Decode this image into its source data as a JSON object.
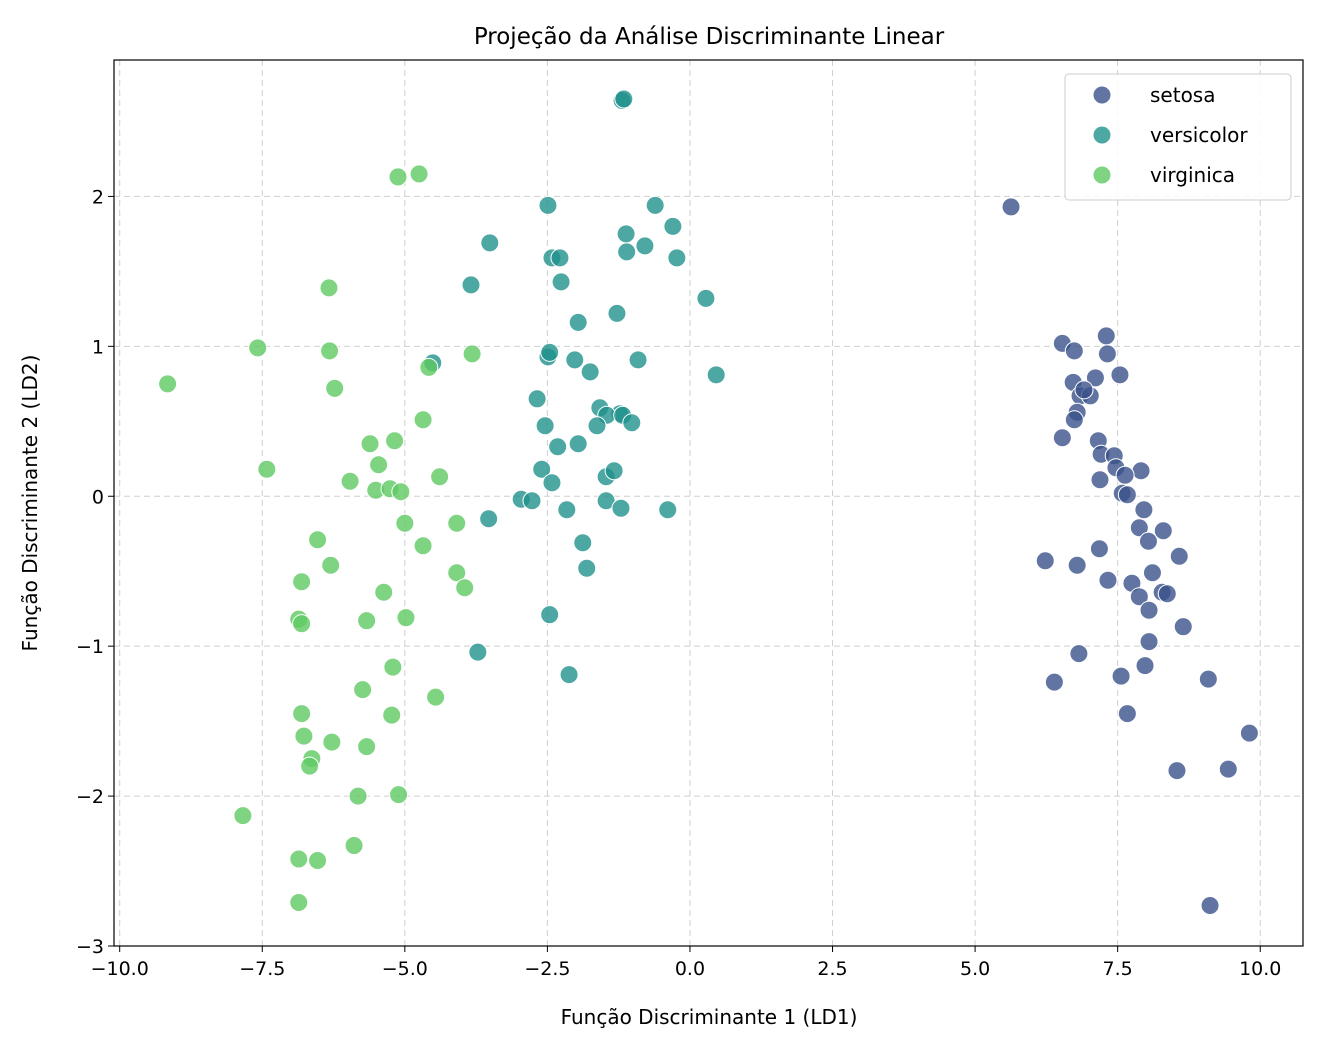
{
  "chart_data": {
    "type": "scatter",
    "title": "Projeção da Análise Discriminante Linear",
    "xlabel": "Função Discriminante 1 (LD1)",
    "ylabel": "Função Discriminante 2 (LD2)",
    "xlim": [
      -10.1,
      10.75
    ],
    "ylim": [
      -3.0,
      2.91
    ],
    "xticks": [
      -10.0,
      -7.5,
      -5.0,
      -2.5,
      0.0,
      2.5,
      5.0,
      7.5,
      10.0
    ],
    "xtick_labels": [
      "−10.0",
      "−7.5",
      "−5.0",
      "−2.5",
      "0.0",
      "2.5",
      "5.0",
      "7.5",
      "10.0"
    ],
    "yticks": [
      -3,
      -2,
      -1,
      0,
      1,
      2
    ],
    "ytick_labels": [
      "−3",
      "−2",
      "−1",
      "0",
      "1",
      "2"
    ],
    "grid": true,
    "legend_position": "top-right",
    "series": [
      {
        "name": "setosa",
        "color": "#3b528b",
        "points": [
          [
            5.63,
            1.93
          ],
          [
            6.53,
            1.02
          ],
          [
            6.74,
            0.97
          ],
          [
            7.3,
            1.07
          ],
          [
            7.32,
            0.95
          ],
          [
            7.11,
            0.79
          ],
          [
            7.54,
            0.81
          ],
          [
            6.72,
            0.76
          ],
          [
            6.84,
            0.67
          ],
          [
            7.02,
            0.67
          ],
          [
            6.91,
            0.71
          ],
          [
            6.79,
            0.56
          ],
          [
            6.74,
            0.51
          ],
          [
            6.53,
            0.39
          ],
          [
            7.16,
            0.37
          ],
          [
            7.21,
            0.28
          ],
          [
            7.44,
            0.27
          ],
          [
            7.47,
            0.19
          ],
          [
            7.91,
            0.17
          ],
          [
            7.63,
            0.14
          ],
          [
            7.58,
            0.02
          ],
          [
            7.67,
            0.01
          ],
          [
            7.19,
            0.11
          ],
          [
            7.96,
            -0.09
          ],
          [
            7.88,
            -0.21
          ],
          [
            8.04,
            -0.3
          ],
          [
            8.3,
            -0.23
          ],
          [
            7.18,
            -0.35
          ],
          [
            6.23,
            -0.43
          ],
          [
            6.79,
            -0.46
          ],
          [
            7.33,
            -0.56
          ],
          [
            7.75,
            -0.58
          ],
          [
            8.11,
            -0.51
          ],
          [
            8.58,
            -0.4
          ],
          [
            7.88,
            -0.67
          ],
          [
            8.28,
            -0.64
          ],
          [
            8.37,
            -0.65
          ],
          [
            8.05,
            -0.76
          ],
          [
            8.65,
            -0.87
          ],
          [
            8.05,
            -0.97
          ],
          [
            6.82,
            -1.05
          ],
          [
            6.39,
            -1.24
          ],
          [
            7.56,
            -1.2
          ],
          [
            7.98,
            -1.13
          ],
          [
            9.09,
            -1.22
          ],
          [
            7.67,
            -1.45
          ],
          [
            9.81,
            -1.58
          ],
          [
            8.54,
            -1.83
          ],
          [
            9.44,
            -1.82
          ],
          [
            9.12,
            -2.73
          ]
        ]
      },
      {
        "name": "versicolor",
        "color": "#21918c",
        "points": [
          [
            -1.19,
            2.64
          ],
          [
            -1.16,
            2.65
          ],
          [
            -2.49,
            1.94
          ],
          [
            -0.61,
            1.94
          ],
          [
            -0.3,
            1.8
          ],
          [
            -1.12,
            1.75
          ],
          [
            -3.51,
            1.69
          ],
          [
            -1.11,
            1.63
          ],
          [
            -0.79,
            1.67
          ],
          [
            -2.42,
            1.59
          ],
          [
            -2.28,
            1.59
          ],
          [
            -0.23,
            1.59
          ],
          [
            -2.26,
            1.43
          ],
          [
            0.28,
            1.32
          ],
          [
            -3.84,
            1.41
          ],
          [
            -1.28,
            1.22
          ],
          [
            -1.96,
            1.16
          ],
          [
            -4.51,
            0.89
          ],
          [
            -2.49,
            0.93
          ],
          [
            -2.46,
            0.96
          ],
          [
            -2.02,
            0.91
          ],
          [
            -0.91,
            0.91
          ],
          [
            -1.75,
            0.83
          ],
          [
            0.46,
            0.81
          ],
          [
            -2.68,
            0.65
          ],
          [
            -1.58,
            0.59
          ],
          [
            -2.54,
            0.47
          ],
          [
            -1.23,
            0.55
          ],
          [
            -1.46,
            0.54
          ],
          [
            -1.18,
            0.54
          ],
          [
            -1.02,
            0.49
          ],
          [
            -1.63,
            0.47
          ],
          [
            -1.96,
            0.35
          ],
          [
            -2.32,
            0.33
          ],
          [
            -2.6,
            0.18
          ],
          [
            -2.42,
            0.09
          ],
          [
            -1.47,
            0.13
          ],
          [
            -1.33,
            0.17
          ],
          [
            -2.96,
            -0.02
          ],
          [
            -2.77,
            -0.03
          ],
          [
            -1.47,
            -0.03
          ],
          [
            -2.16,
            -0.09
          ],
          [
            -1.21,
            -0.08
          ],
          [
            -0.39,
            -0.09
          ],
          [
            -3.53,
            -0.15
          ],
          [
            -1.88,
            -0.31
          ],
          [
            -1.81,
            -0.48
          ],
          [
            -2.46,
            -0.79
          ],
          [
            -3.72,
            -1.04
          ],
          [
            -2.12,
            -1.19
          ]
        ]
      },
      {
        "name": "virginica",
        "color": "#5ec962",
        "points": [
          [
            -4.75,
            2.15
          ],
          [
            -5.12,
            2.13
          ],
          [
            -6.33,
            1.39
          ],
          [
            -7.58,
            0.99
          ],
          [
            -6.32,
            0.97
          ],
          [
            -3.82,
            0.95
          ],
          [
            -9.16,
            0.75
          ],
          [
            -4.58,
            0.86
          ],
          [
            -6.23,
            0.72
          ],
          [
            -4.68,
            0.51
          ],
          [
            -5.61,
            0.35
          ],
          [
            -5.18,
            0.37
          ],
          [
            -7.42,
            0.18
          ],
          [
            -5.46,
            0.21
          ],
          [
            -4.39,
            0.13
          ],
          [
            -5.96,
            0.1
          ],
          [
            -5.51,
            0.04
          ],
          [
            -5.26,
            0.05
          ],
          [
            -5.07,
            0.03
          ],
          [
            -5.0,
            -0.18
          ],
          [
            -4.09,
            -0.18
          ],
          [
            -6.53,
            -0.29
          ],
          [
            -4.68,
            -0.33
          ],
          [
            -6.3,
            -0.46
          ],
          [
            -4.09,
            -0.51
          ],
          [
            -3.95,
            -0.61
          ],
          [
            -6.81,
            -0.57
          ],
          [
            -5.37,
            -0.64
          ],
          [
            -5.67,
            -0.83
          ],
          [
            -4.98,
            -0.81
          ],
          [
            -6.86,
            -0.82
          ],
          [
            -6.81,
            -0.85
          ],
          [
            -5.21,
            -1.14
          ],
          [
            -5.74,
            -1.29
          ],
          [
            -4.46,
            -1.34
          ],
          [
            -5.23,
            -1.46
          ],
          [
            -6.81,
            -1.45
          ],
          [
            -6.77,
            -1.6
          ],
          [
            -6.28,
            -1.64
          ],
          [
            -5.67,
            -1.67
          ],
          [
            -6.63,
            -1.75
          ],
          [
            -6.67,
            -1.8
          ],
          [
            -5.82,
            -2.0
          ],
          [
            -5.11,
            -1.99
          ],
          [
            -7.84,
            -2.13
          ],
          [
            -5.89,
            -2.33
          ],
          [
            -6.86,
            -2.42
          ],
          [
            -6.53,
            -2.43
          ],
          [
            -6.86,
            -2.71
          ]
        ]
      }
    ]
  }
}
